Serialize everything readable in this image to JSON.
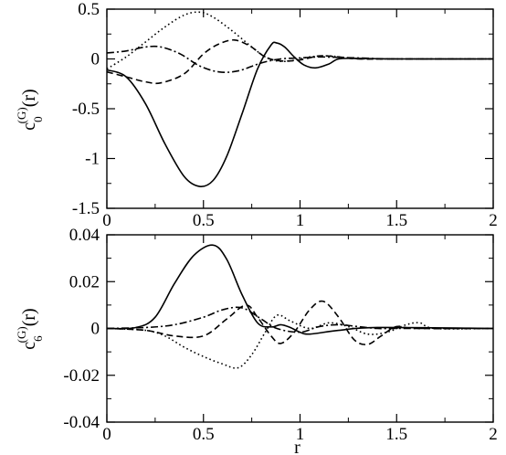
{
  "chart_data": [
    {
      "type": "line",
      "ylabel_base": "c",
      "ylabel_sub": "0",
      "ylabel_sup": "(G)",
      "ylabel_arg": "(r)",
      "xlabel": "",
      "xlim": [
        0,
        2
      ],
      "ylim": [
        -1.5,
        0.5
      ],
      "x_ticks": [
        "0",
        "0.5",
        "1",
        "1.5",
        "2"
      ],
      "y_ticks": [
        "0.5",
        "0",
        "-0.5",
        "-1",
        "-1.5"
      ],
      "series": [
        {
          "style": "solid",
          "x": [
            0,
            0.1,
            0.2,
            0.3,
            0.4,
            0.48,
            0.55,
            0.62,
            0.7,
            0.78,
            0.85,
            0.88,
            0.92,
            0.97,
            1.02,
            1.08,
            1.15,
            1.2,
            1.3,
            1.5,
            2.0
          ],
          "y": [
            -0.11,
            -0.18,
            -0.45,
            -0.85,
            -1.18,
            -1.28,
            -1.22,
            -0.98,
            -0.55,
            -0.1,
            0.14,
            0.16,
            0.12,
            0.02,
            -0.06,
            -0.09,
            -0.05,
            0.0,
            0.005,
            0.0,
            0.0
          ]
        },
        {
          "style": "dotted",
          "x": [
            0,
            0.1,
            0.2,
            0.3,
            0.4,
            0.48,
            0.55,
            0.65,
            0.75,
            0.82,
            0.88,
            0.95,
            1.05,
            1.15,
            1.25,
            1.35,
            1.5,
            2.0
          ],
          "y": [
            -0.1,
            0.02,
            0.17,
            0.32,
            0.44,
            0.47,
            0.42,
            0.28,
            0.12,
            0.02,
            -0.02,
            -0.02,
            0.02,
            0.03,
            0.01,
            0.0,
            0.0,
            0.0
          ]
        },
        {
          "style": "dashed",
          "x": [
            0,
            0.1,
            0.2,
            0.28,
            0.4,
            0.5,
            0.58,
            0.66,
            0.74,
            0.82,
            0.9,
            1.0,
            1.1,
            1.2,
            1.3,
            1.5,
            2.0
          ],
          "y": [
            -0.13,
            -0.18,
            -0.23,
            -0.24,
            -0.15,
            0.05,
            0.15,
            0.19,
            0.13,
            0.02,
            -0.02,
            -0.01,
            0.03,
            0.02,
            0.0,
            0.0,
            0.0
          ]
        },
        {
          "style": "dashdot",
          "x": [
            0,
            0.1,
            0.2,
            0.28,
            0.38,
            0.48,
            0.58,
            0.68,
            0.8,
            0.9,
            1.0,
            1.1,
            1.2,
            1.3,
            1.5,
            2.0
          ],
          "y": [
            0.06,
            0.08,
            0.12,
            0.12,
            0.05,
            -0.07,
            -0.13,
            -0.12,
            -0.04,
            0.0,
            0.01,
            0.02,
            0.015,
            0.01,
            0.0,
            0.0
          ]
        }
      ]
    },
    {
      "type": "line",
      "ylabel_base": "c",
      "ylabel_sub": "6",
      "ylabel_sup": "(G)",
      "ylabel_arg": "(r)",
      "xlabel": "r",
      "xlim": [
        0,
        2
      ],
      "ylim": [
        -0.05,
        0.05
      ],
      "x_ticks": [
        "0",
        "0.5",
        "1",
        "1.5",
        "2"
      ],
      "y_ticks": [
        "0.04",
        "0.02",
        "0",
        "-0.02",
        "-0.04"
      ],
      "series": [
        {
          "style": "solid",
          "x": [
            0,
            0.15,
            0.25,
            0.35,
            0.45,
            0.55,
            0.62,
            0.7,
            0.78,
            0.85,
            0.9,
            0.95,
            1.0,
            1.05,
            1.2,
            1.4,
            2.0
          ],
          "y": [
            0.0,
            0.0005,
            0.006,
            0.024,
            0.039,
            0.0445,
            0.037,
            0.018,
            0.003,
            0.0008,
            0.002,
            0.0005,
            -0.002,
            -0.003,
            -0.001,
            0.0005,
            0.0
          ]
        },
        {
          "style": "dotted",
          "x": [
            0,
            0.2,
            0.3,
            0.4,
            0.5,
            0.6,
            0.68,
            0.75,
            0.82,
            0.88,
            0.95,
            1.05,
            1.15,
            1.25,
            1.35,
            1.45,
            1.55,
            1.62,
            1.7,
            2.0
          ],
          "y": [
            0.0,
            -0.001,
            -0.004,
            -0.01,
            -0.015,
            -0.019,
            -0.021,
            -0.014,
            -0.002,
            0.007,
            0.004,
            0.0,
            0.003,
            0.001,
            -0.003,
            -0.002,
            0.002,
            0.003,
            0.0,
            0.0
          ]
        },
        {
          "style": "dashed",
          "x": [
            0,
            0.2,
            0.35,
            0.5,
            0.62,
            0.72,
            0.78,
            0.85,
            0.9,
            0.97,
            1.05,
            1.12,
            1.2,
            1.28,
            1.35,
            1.42,
            1.5,
            1.6,
            2.0
          ],
          "y": [
            0.0,
            -0.001,
            -0.004,
            -0.004,
            0.005,
            0.0125,
            0.006,
            -0.004,
            -0.008,
            -0.002,
            0.01,
            0.0145,
            0.006,
            -0.006,
            -0.0085,
            -0.004,
            0.001,
            0.0,
            0.0
          ]
        },
        {
          "style": "dashdot",
          "x": [
            0,
            0.2,
            0.35,
            0.5,
            0.6,
            0.7,
            0.8,
            0.88,
            1.0,
            1.1,
            1.2,
            1.3,
            1.4,
            1.5,
            2.0
          ],
          "y": [
            0.0,
            0.0005,
            0.002,
            0.006,
            0.01,
            0.011,
            0.005,
            0.0,
            -0.002,
            0.001,
            0.002,
            0.001,
            0.0,
            0.0,
            0.0
          ]
        }
      ]
    }
  ]
}
